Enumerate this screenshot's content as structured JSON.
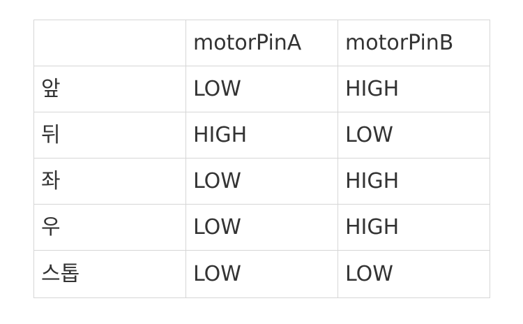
{
  "table": {
    "headers": [
      "",
      "motorPinA",
      "motorPinB"
    ],
    "rows": [
      [
        "앞",
        "LOW",
        "HIGH"
      ],
      [
        "뒤",
        "HIGH",
        "LOW"
      ],
      [
        "좌",
        "LOW",
        "HIGH"
      ],
      [
        "우",
        "LOW",
        "HIGH"
      ],
      [
        "스톱",
        "LOW",
        "LOW"
      ]
    ]
  }
}
